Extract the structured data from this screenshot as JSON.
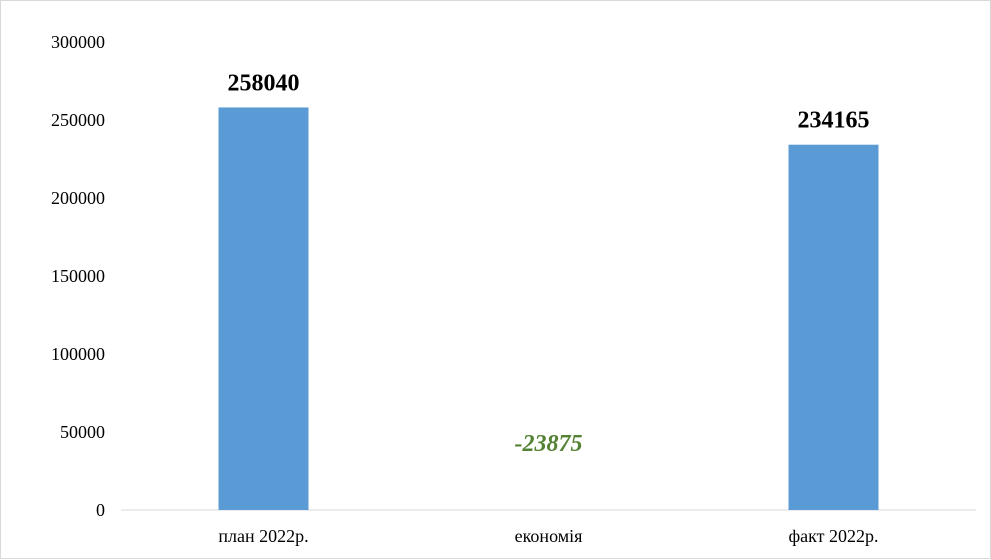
{
  "chart_data": {
    "type": "bar",
    "categories": [
      "план 2022р.",
      "економія",
      "факт 2022р."
    ],
    "values": [
      258040,
      -23875,
      234165
    ],
    "data_labels": [
      "258040",
      "-23875",
      "234165"
    ],
    "title": "",
    "xlabel": "",
    "ylabel": "",
    "ylim": [
      0,
      300000
    ],
    "y_ticks": [
      "0",
      "50000",
      "100000",
      "150000",
      "200000",
      "250000",
      "300000"
    ],
    "grid": false,
    "legend": "none",
    "colors": {
      "bar": "#5b9bd5",
      "positive_label": "#000000",
      "negative_label": "#548235",
      "axis": "#d9d9d9"
    }
  }
}
